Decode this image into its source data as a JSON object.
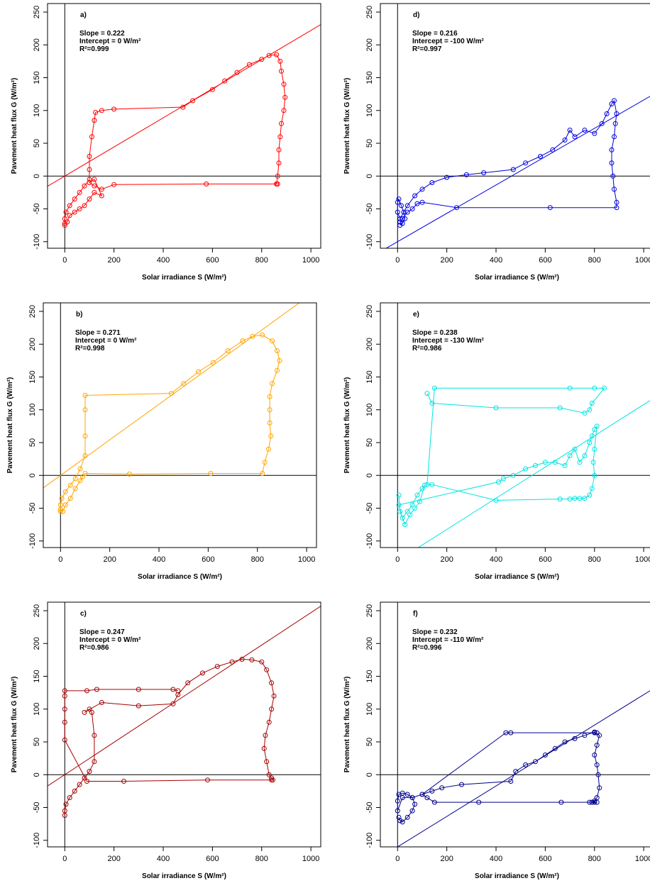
{
  "figure": {
    "axis": {
      "x_ticks": [
        "0",
        "200",
        "400",
        "600",
        "800",
        "1000"
      ],
      "y_ticks": [
        "-100",
        "-50",
        "0",
        "50",
        "100",
        "150",
        "200",
        "250"
      ]
    }
  },
  "chart_data": [
    {
      "type": "scatter",
      "panel": "a)",
      "xlabel": "Solar irradiance S (W/m²)",
      "ylabel": "Pavement heat flux G (W/m²)",
      "xlim": [
        -70,
        1040
      ],
      "ylim": [
        -110,
        263
      ],
      "annotations": [
        "Slope = 0.222",
        "Intercept = 0 W/m²",
        "R²=0.999"
      ],
      "color": "#ff0000",
      "fit": {
        "slope": 0.222,
        "intercept": 0
      },
      "series": [
        {
          "x": [
            0,
            0,
            5,
            20,
            40,
            60,
            80,
            100,
            100,
            100,
            110,
            120,
            125,
            150,
            200,
            480,
            520,
            600,
            650,
            700,
            750,
            800,
            830,
            860,
            875,
            880,
            890,
            895,
            890,
            880,
            875,
            870,
            870,
            865,
            860,
            865,
            860,
            575,
            200,
            150,
            120,
            100,
            120,
            150,
            120,
            100,
            80,
            60,
            40,
            20,
            10,
            0
          ],
          "y": [
            -75,
            -65,
            -55,
            -45,
            -35,
            -25,
            -15,
            -5,
            10,
            30,
            60,
            85,
            97,
            100,
            102,
            105,
            115,
            132,
            145,
            158,
            170,
            178,
            184,
            185,
            175,
            160,
            140,
            120,
            100,
            80,
            60,
            40,
            20,
            0,
            -12,
            -12,
            -12,
            -12,
            -13,
            -20,
            -15,
            -10,
            -5,
            -30,
            -25,
            -35,
            -45,
            -50,
            -55,
            -60,
            -70,
            -72
          ]
        }
      ]
    },
    {
      "type": "scatter",
      "panel": "b)",
      "xlabel": "Solar irradiance S (W/m²)",
      "ylabel": "Pavement heat flux G (W/m²)",
      "xlim": [
        -70,
        1040
      ],
      "ylim": [
        -110,
        263
      ],
      "annotations": [
        "Slope = 0.271",
        "Intercept = 0 W/m²",
        "R²=0.998"
      ],
      "color": "#ffa500",
      "fit": {
        "slope": 0.271,
        "intercept": 0
      },
      "series": [
        {
          "x": [
            0,
            0,
            5,
            20,
            40,
            60,
            80,
            100,
            100,
            100,
            100,
            450,
            500,
            560,
            620,
            680,
            740,
            780,
            820,
            860,
            880,
            890,
            880,
            860,
            850,
            850,
            850,
            855,
            845,
            830,
            820,
            610,
            280,
            100,
            90,
            80,
            60,
            40,
            20,
            10,
            0
          ],
          "y": [
            -55,
            -45,
            -35,
            -25,
            -15,
            -5,
            10,
            30,
            60,
            100,
            122,
            125,
            140,
            158,
            172,
            190,
            205,
            212,
            214,
            205,
            190,
            175,
            160,
            140,
            120,
            100,
            80,
            60,
            40,
            20,
            3,
            3,
            2,
            3,
            -2,
            -8,
            -20,
            -35,
            -45,
            -55,
            -52
          ]
        }
      ]
    },
    {
      "type": "scatter",
      "panel": "c)",
      "xlabel": "Solar irradiance S (W/m²)",
      "ylabel": "Pavement heat flux G (W/m²)",
      "xlim": [
        -70,
        1040
      ],
      "ylim": [
        -110,
        263
      ],
      "annotations": [
        "Slope = 0.247",
        "Intercept = 0 W/m²",
        "R²=0.986"
      ],
      "color": "#a50000",
      "fit": {
        "slope": 0.247,
        "intercept": 0
      },
      "series": [
        {
          "x": [
            0,
            0,
            5,
            20,
            40,
            60,
            80,
            100,
            120,
            120,
            110,
            100,
            80,
            150,
            300,
            440,
            460,
            500,
            560,
            620,
            680,
            720,
            760,
            800,
            820,
            840,
            850,
            840,
            830,
            815,
            810,
            820,
            830,
            840,
            845,
            840,
            580,
            240,
            90,
            0,
            0,
            0,
            0,
            0,
            90,
            130,
            300,
            440,
            460
          ],
          "y": [
            -62,
            -55,
            -45,
            -35,
            -25,
            -15,
            -5,
            5,
            20,
            60,
            95,
            100,
            95,
            110,
            105,
            108,
            122,
            140,
            155,
            165,
            172,
            176,
            175,
            172,
            160,
            140,
            120,
            100,
            80,
            60,
            40,
            20,
            0,
            -5,
            -8,
            -8,
            -8,
            -10,
            -10,
            53,
            80,
            100,
            120,
            128,
            128,
            130,
            130,
            130,
            128
          ]
        }
      ]
    },
    {
      "type": "scatter",
      "panel": "d)",
      "xlabel": "Solar irradiance S (W/m²)",
      "ylabel": "Pavement heat flux G (W/m²)",
      "xlim": [
        -70,
        1040
      ],
      "ylim": [
        -110,
        263
      ],
      "annotations": [
        "Slope = 0.216",
        "Intercept = -100 W/m²",
        "R²=0.997"
      ],
      "color": "#0000dd",
      "fit": {
        "slope": 0.216,
        "intercept": -100
      },
      "series": [
        {
          "x": [
            10,
            20,
            30,
            25,
            15,
            5,
            0,
            0,
            10,
            40,
            70,
            100,
            140,
            200,
            280,
            350,
            470,
            520,
            580,
            630,
            680,
            700,
            720,
            760,
            800,
            830,
            850,
            870,
            880,
            890,
            885,
            880,
            870,
            870,
            875,
            880,
            890,
            890,
            620,
            240,
            100,
            80,
            60,
            40,
            20,
            10
          ],
          "y": [
            -75,
            -72,
            -65,
            -55,
            -45,
            -35,
            -40,
            -55,
            -65,
            -45,
            -30,
            -20,
            -10,
            -2,
            2,
            5,
            10,
            20,
            30,
            40,
            55,
            70,
            60,
            70,
            65,
            80,
            95,
            110,
            115,
            95,
            80,
            60,
            40,
            20,
            0,
            -20,
            -40,
            -48,
            -48,
            -48,
            -40,
            -42,
            -50,
            -55,
            -65,
            -70
          ]
        }
      ]
    },
    {
      "type": "scatter",
      "panel": "e)",
      "xlabel": "Solar irradiance S (W/m²)",
      "ylabel": "Pavement heat flux G (W/m²)",
      "xlim": [
        -70,
        1040
      ],
      "ylim": [
        -110,
        263
      ],
      "annotations": [
        "Slope = 0.238",
        "Intercept = -130 W/m²",
        "R²=0.986"
      ],
      "color": "#00e5e5",
      "fit": {
        "slope": 0.238,
        "intercept": -130
      },
      "series": [
        {
          "x": [
            5,
            10,
            30,
            50,
            70,
            90,
            110,
            100,
            80,
            60,
            40,
            20,
            5,
            410,
            430,
            470,
            520,
            560,
            600,
            640,
            680,
            700,
            720,
            740,
            760,
            780,
            790,
            800,
            810,
            800,
            795,
            800,
            790,
            780,
            760,
            740,
            720,
            700,
            660,
            400,
            140,
            120,
            150,
            700,
            800,
            840,
            790,
            780,
            760,
            660,
            400,
            140,
            120
          ],
          "y": [
            -30,
            -55,
            -75,
            -60,
            -50,
            -40,
            -15,
            -20,
            -30,
            -45,
            -55,
            -65,
            -45,
            -10,
            -5,
            0,
            10,
            15,
            20,
            20,
            15,
            30,
            40,
            20,
            30,
            50,
            60,
            70,
            75,
            40,
            20,
            0,
            -20,
            -30,
            -35,
            -35,
            -35,
            -36,
            -36,
            -38,
            -14,
            -14,
            133,
            133,
            133,
            133,
            110,
            100,
            95,
            103,
            103,
            110,
            125
          ]
        }
      ]
    },
    {
      "type": "scatter",
      "panel": "f)",
      "xlabel": "Solar irradiance S (W/m²)",
      "ylabel": "Pavement heat flux G (W/m²)",
      "xlim": [
        -70,
        1040
      ],
      "ylim": [
        -110,
        263
      ],
      "annotations": [
        "Slope = 0.232",
        "Intercept = -110 W/m²",
        "R²=0.996"
      ],
      "color": "#00008b",
      "fit": {
        "slope": 0.232,
        "intercept": -110
      },
      "series": [
        {
          "x": [
            5,
            10,
            20,
            40,
            60,
            70,
            60,
            40,
            20,
            5,
            0,
            0,
            20,
            60,
            100,
            140,
            180,
            260,
            460,
            480,
            520,
            560,
            600,
            640,
            680,
            720,
            760,
            800,
            820,
            810,
            800,
            810,
            815,
            820,
            810,
            800,
            790,
            780,
            790,
            800,
            810,
            665,
            330,
            150,
            120,
            100,
            440,
            460,
            800,
            810
          ],
          "y": [
            -65,
            -70,
            -72,
            -65,
            -55,
            -45,
            -35,
            -30,
            -28,
            -30,
            -40,
            -55,
            -35,
            -35,
            -30,
            -25,
            -20,
            -15,
            -10,
            5,
            15,
            20,
            30,
            40,
            50,
            55,
            60,
            65,
            60,
            45,
            30,
            15,
            0,
            -20,
            -35,
            -40,
            -42,
            -42,
            -42,
            -42,
            -42,
            -42,
            -42,
            -42,
            -35,
            -30,
            64,
            64,
            64,
            64
          ]
        }
      ]
    }
  ]
}
